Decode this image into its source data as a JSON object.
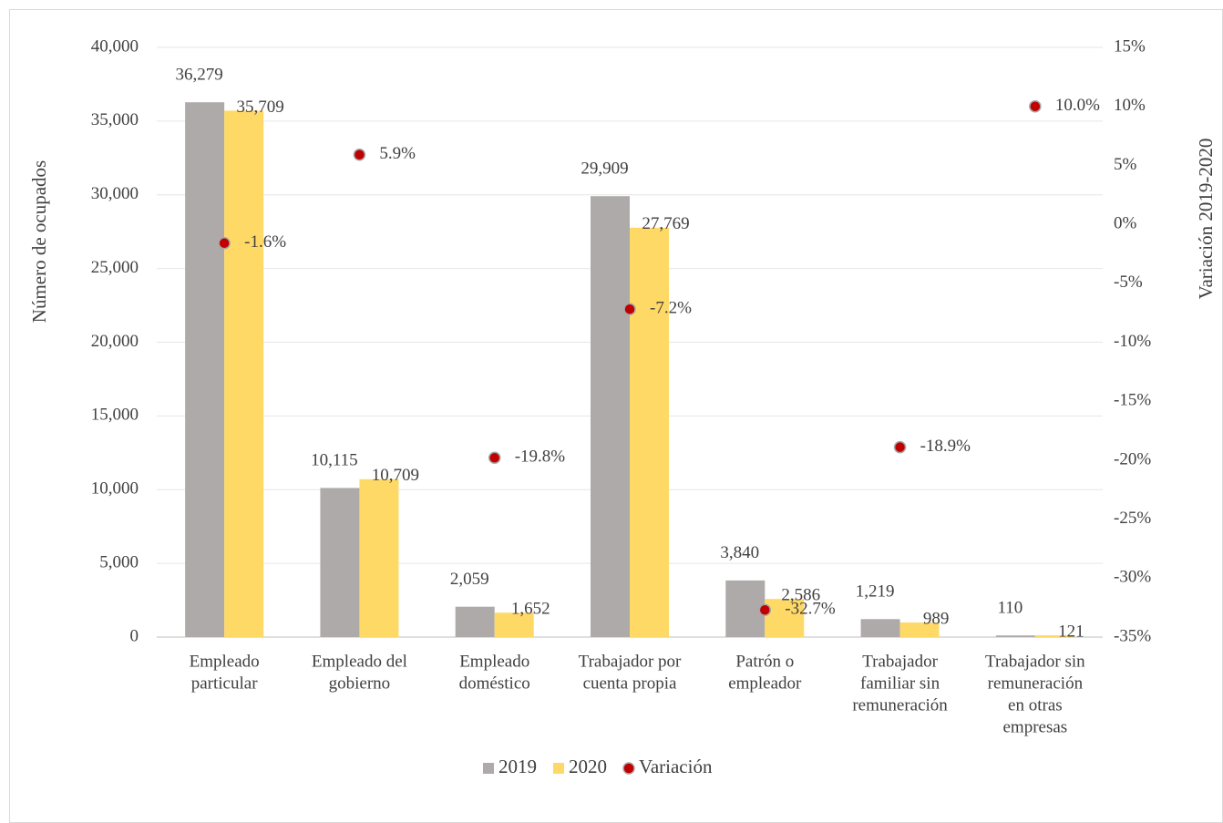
{
  "chart_data": {
    "type": "bar_dot_combo",
    "categories": [
      [
        "Empleado",
        "particular"
      ],
      [
        "Empleado del",
        "gobierno"
      ],
      [
        "Empleado",
        "doméstico"
      ],
      [
        "Trabajador por",
        "cuenta propia"
      ],
      [
        "Patrón o",
        "empleador"
      ],
      [
        "Trabajador",
        "familiar sin",
        "remuneración"
      ],
      [
        "Trabajador sin",
        "remuneración",
        "en otras",
        "empresas"
      ]
    ],
    "series": [
      {
        "name": "2019",
        "color": "#aeaaaa",
        "values": [
          36279,
          10115,
          2059,
          29909,
          3840,
          1219,
          110
        ],
        "value_labels": [
          "36,279",
          "10,115",
          "2,059",
          "29,909",
          "3,840",
          "1,219",
          "110"
        ]
      },
      {
        "name": "2020",
        "color": "#ffd966",
        "values": [
          35709,
          10709,
          1652,
          27769,
          2586,
          989,
          121
        ],
        "value_labels": [
          "35,709",
          "10,709",
          "1,652",
          "27,769",
          "2,586",
          "989",
          "121"
        ]
      },
      {
        "name": "Variación",
        "color": "#c00000",
        "axis": "y2",
        "values": [
          -1.6,
          5.9,
          -19.8,
          -7.2,
          -32.7,
          -18.9,
          10.0
        ],
        "value_labels": [
          "-1.6%",
          "5.9%",
          "-19.8%",
          "-7.2%",
          "-32.7%",
          "-18.9%",
          "10.0%"
        ]
      }
    ],
    "ylabel": "Número de ocupados",
    "y2label": "Variación 2019-2020",
    "ylim": [
      0,
      40000
    ],
    "yticks": [
      0,
      {
        "value": 5000,
        "label": "5,000"
      },
      {
        "value": 10000,
        "label": "10,000"
      },
      {
        "value": 15000,
        "label": "15,000"
      },
      {
        "value": 20000,
        "label": "20,000"
      },
      {
        "value": 25000,
        "label": "25,000"
      },
      {
        "value": 30000,
        "label": "30,000"
      },
      {
        "value": 35000,
        "label": "35,000"
      },
      {
        "value": 40000,
        "label": "40,000"
      }
    ],
    "y2lim": [
      -35,
      15
    ],
    "y2ticks": [
      {
        "value": -35,
        "label": "-35%"
      },
      {
        "value": -30,
        "label": "-30%"
      },
      {
        "value": -25,
        "label": "-25%"
      },
      {
        "value": -20,
        "label": "-20%"
      },
      {
        "value": -15,
        "label": "-15%"
      },
      {
        "value": -10,
        "label": "-10%"
      },
      {
        "value": -5,
        "label": "-5%"
      },
      {
        "value": 0,
        "label": "0%"
      },
      {
        "value": 5,
        "label": "5%"
      },
      {
        "value": 10,
        "label": "10%"
      },
      {
        "value": 15,
        "label": "15%"
      }
    ],
    "grid": true,
    "legend": "bottom"
  }
}
